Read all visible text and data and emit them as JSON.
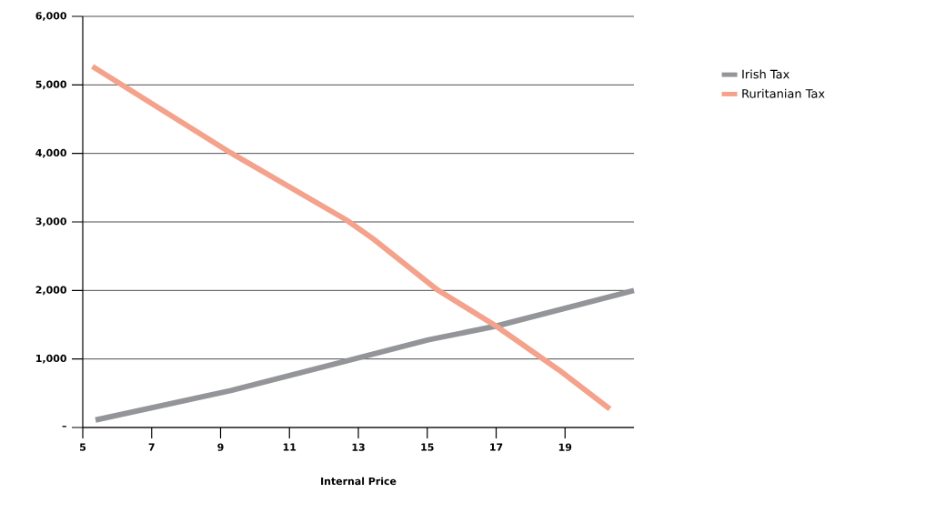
{
  "chart_data": {
    "type": "line",
    "xlabel": "Internal Price",
    "xlim": [
      5,
      21
    ],
    "xticks": [
      5,
      7,
      9,
      11,
      13,
      15,
      17,
      19
    ],
    "ylim": [
      0,
      6000
    ],
    "yticks": [
      {
        "value": 0,
        "label": "–"
      },
      {
        "value": 1000,
        "label": "1,000"
      },
      {
        "value": 2000,
        "label": "2,000"
      },
      {
        "value": 3000,
        "label": "3,000"
      },
      {
        "value": 4000,
        "label": "4,000"
      },
      {
        "value": 5000,
        "label": "5,000"
      },
      {
        "value": 6000,
        "label": "6,000"
      }
    ],
    "grid": "y",
    "legend": "top right",
    "marker": "none",
    "line_style": "solid",
    "series": [
      {
        "name": "Irish Tax",
        "color": "#939598",
        "x": [
          5.37,
          9.3,
          12.65,
          15.03,
          17,
          21
        ],
        "values": [
          110,
          540,
          970,
          1280,
          1480,
          2000
        ]
      },
      {
        "name": "Ruritanian Tax",
        "color": "#f4a28c",
        "x": [
          5.28,
          9.29,
          12.65,
          13.44,
          15.29,
          17,
          18.82,
          20.3
        ],
        "values": [
          5270,
          4010,
          3030,
          2750,
          2010,
          1480,
          840,
          270
        ]
      }
    ]
  }
}
